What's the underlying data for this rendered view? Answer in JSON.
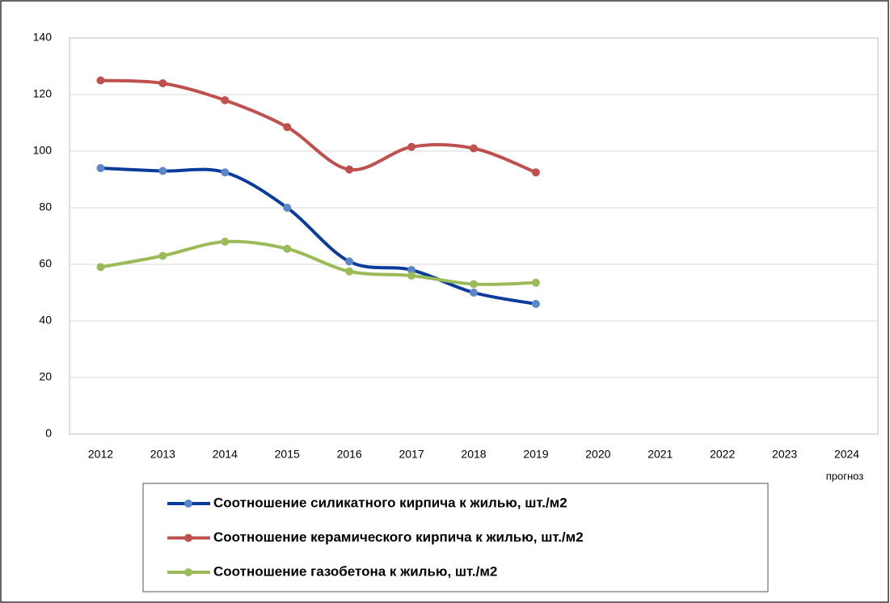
{
  "chart_data": {
    "type": "line",
    "categories": [
      "2012",
      "2013",
      "2014",
      "2015",
      "2016",
      "2017",
      "2018",
      "2019",
      "2020",
      "2021",
      "2022",
      "2023",
      "2024"
    ],
    "annotation": "прогноз",
    "series": [
      {
        "name": "Соотношение силикатного кирпича к жилью, шт./м2",
        "color": "#0b3c9c",
        "marker_color": "#5b86c8",
        "values": [
          94,
          93,
          92.5,
          80,
          61,
          58,
          50,
          46,
          null,
          null,
          null,
          null,
          null
        ]
      },
      {
        "name": "Соотношение керамического кирпича к жилью, шт./м2",
        "color": "#c0504d",
        "marker_color": "#c0504d",
        "values": [
          125,
          124,
          118,
          108.5,
          93.5,
          101.5,
          101,
          92.5,
          null,
          null,
          null,
          null,
          null
        ]
      },
      {
        "name": "Соотношение газобетона к жилью, шт./м2",
        "color": "#9bbb59",
        "marker_color": "#9bbb59",
        "values": [
          59,
          63,
          68,
          65.5,
          57.5,
          56,
          53,
          53.5,
          null,
          null,
          null,
          null,
          null
        ]
      }
    ],
    "ylim": [
      0,
      140
    ],
    "yticks": [
      0,
      20,
      40,
      60,
      80,
      100,
      120,
      140
    ],
    "grid": true,
    "smooth": true
  }
}
